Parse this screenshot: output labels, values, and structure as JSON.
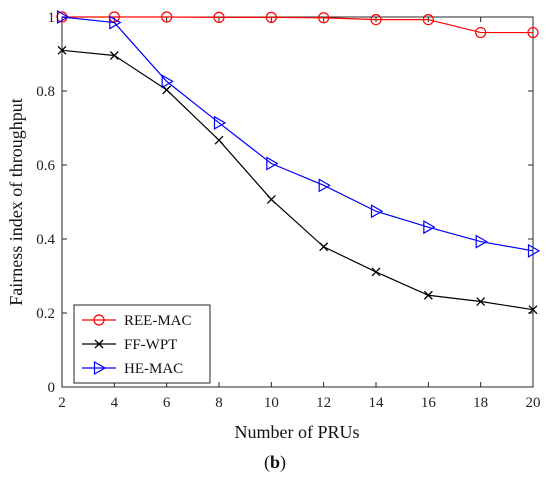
{
  "chart_data": {
    "type": "line",
    "xlabel": "Number of PRUs",
    "ylabel": "Fairness index of throughput",
    "x": [
      2,
      4,
      6,
      8,
      10,
      12,
      14,
      16,
      18,
      20
    ],
    "xlim": [
      2,
      20
    ],
    "ylim": [
      0,
      1
    ],
    "xticks": [
      "2",
      "4",
      "6",
      "8",
      "10",
      "12",
      "14",
      "16",
      "18",
      "20"
    ],
    "yticks": [
      "0",
      "0.2",
      "0.4",
      "0.6",
      "0.8",
      "1"
    ],
    "grid": false,
    "legend_position": "bottom-left",
    "series": [
      {
        "name": "REE-MAC",
        "color": "#ff0000",
        "marker": "circle",
        "values": [
          1.0,
          1.0,
          1.0,
          0.999,
          0.999,
          0.998,
          0.993,
          0.993,
          0.958,
          0.958
        ]
      },
      {
        "name": "FF-WPT",
        "color": "#000000",
        "marker": "x",
        "values": [
          0.91,
          0.896,
          0.803,
          0.667,
          0.507,
          0.379,
          0.311,
          0.248,
          0.231,
          0.209
        ]
      },
      {
        "name": "HE-MAC",
        "color": "#0000ff",
        "marker": "triangle-right",
        "values": [
          1.0,
          0.985,
          0.826,
          0.714,
          0.604,
          0.545,
          0.475,
          0.432,
          0.393,
          0.368
        ]
      }
    ]
  },
  "caption": {
    "prefix": "(",
    "label": "b",
    "suffix": ")"
  }
}
